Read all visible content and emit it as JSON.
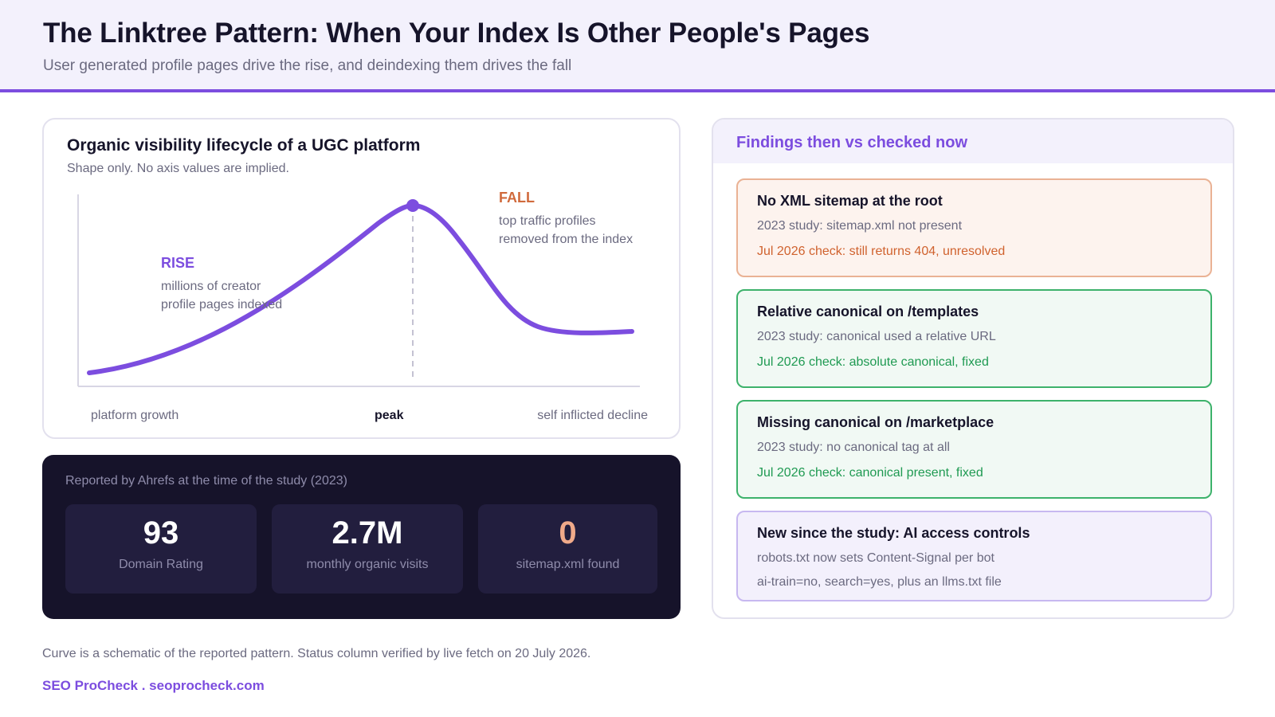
{
  "header": {
    "title": "The Linktree Pattern: When Your Index Is Other People's Pages",
    "subtitle": "User generated profile pages drive the rise, and deindexing them drives the fall"
  },
  "chart": {
    "title": "Organic visibility lifecycle of a UGC platform",
    "subtitle": "Shape only. No axis values are implied.",
    "rise_label": "RISE",
    "rise_desc_1": "millions of creator",
    "rise_desc_2": "profile pages indexed",
    "fall_label": "FALL",
    "fall_desc_1": "top traffic profiles",
    "fall_desc_2": "removed from the index",
    "x_left": "platform growth",
    "x_mid": "peak",
    "x_right": "self inflicted decline",
    "curve_color": "#7c4ddf"
  },
  "chart_data": {
    "type": "line",
    "title": "Organic visibility lifecycle of a UGC platform",
    "subtitle": "Shape only. No axis values are implied.",
    "x": [
      0,
      0.1,
      0.2,
      0.3,
      0.4,
      0.5,
      0.6,
      0.62,
      0.7,
      0.8,
      0.9,
      1.0
    ],
    "series": [
      {
        "values": [
          0.0,
          0.08,
          0.2,
          0.38,
          0.6,
          0.82,
          0.96,
          1.0,
          0.86,
          0.52,
          0.27,
          0.24
        ]
      }
    ],
    "x_tick_labels": [
      "platform growth",
      "peak",
      "self inflicted decline"
    ],
    "annotations": [
      "RISE",
      "FALL"
    ],
    "grid": false
  },
  "stats": {
    "heading": "Reported by Ahrefs at the time of the study (2023)",
    "items": [
      {
        "value": "93",
        "label": "Domain Rating"
      },
      {
        "value": "2.7M",
        "label": "monthly organic visits"
      },
      {
        "value": "0",
        "label": "sitemap.xml found"
      }
    ]
  },
  "findings": {
    "heading": "Findings then vs checked now",
    "cards": [
      {
        "title": "No XML sitemap at the root",
        "then": "2023 study: sitemap.xml not present",
        "now": "Jul 2026 check: still returns 404, unresolved",
        "status": "unresolved"
      },
      {
        "title": "Relative canonical on /templates",
        "then": "2023 study: canonical used a relative URL",
        "now": "Jul 2026 check: absolute canonical, fixed",
        "status": "fixed"
      },
      {
        "title": "Missing canonical on /marketplace",
        "then": "2023 study: no canonical tag at all",
        "now": "Jul 2026 check: canonical present, fixed",
        "status": "fixed"
      },
      {
        "title": "New since the study: AI access controls",
        "then": "robots.txt now sets Content-Signal per bot",
        "now": "ai-train=no, search=yes, plus an llms.txt file",
        "status": "new"
      }
    ]
  },
  "footer": {
    "note": "Curve is a schematic of the reported pattern. Status column verified by live fetch on 20 July 2026.",
    "brand": "SEO ProCheck . seoprocheck.com"
  }
}
